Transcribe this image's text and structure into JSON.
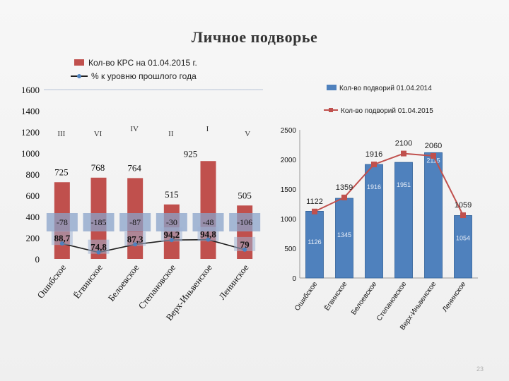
{
  "title": "Личное подворье",
  "page_number": "23",
  "chart_data": [
    {
      "type": "bar",
      "categories": [
        "Ошибское",
        "Ёгвинское",
        "Белоевское",
        "Степановское",
        "Верх-Иньвенское",
        "Ленинское"
      ],
      "series": [
        {
          "name": "Кол-во КРС на 01.04.2015 г.",
          "values": [
            725,
            768,
            764,
            515,
            925,
            505
          ],
          "color": "#c0504d"
        },
        {
          "name": "% к уровню прошлого года",
          "values": [
            88.7,
            74.8,
            87.3,
            94.2,
            94.8,
            79
          ],
          "labels": [
            "88,7",
            "74,8",
            "87,3",
            "94,2",
            "94,8",
            "79"
          ],
          "color": "#1f1f1f",
          "marker_color": "#4f81bd"
        }
      ],
      "value_labels": [
        "725",
        "768",
        "764",
        "515",
        "925",
        "505"
      ],
      "differences": [
        "-78",
        "-185",
        "-87",
        "-30",
        "-48",
        "-106"
      ],
      "ranks": [
        "III",
        "VI",
        "IV",
        "II",
        "I",
        "V"
      ],
      "yticks": [
        "0",
        "200",
        "400",
        "600",
        "800",
        "1000",
        "1200",
        "1400",
        "1600"
      ],
      "ylim": [
        0,
        1600
      ],
      "legend_position": "top",
      "grid": false
    },
    {
      "type": "bar",
      "categories": [
        "Ошибское",
        "Ёгвинское",
        "Белоевское",
        "Степановское",
        "Верх-Иньвенское",
        "Ленинское"
      ],
      "series": [
        {
          "name": "Кол-во подворий 01.04.2014",
          "values": [
            1126,
            1345,
            1916,
            1951,
            2115,
            1054
          ],
          "color": "#4f81bd"
        },
        {
          "name": "Кол-во подворий 01.04.2015",
          "values": [
            1122,
            1359,
            1916,
            2100,
            2060,
            1059
          ],
          "color": "#c0504d"
        }
      ],
      "bar_labels": [
        "1126",
        "1345",
        "1916",
        "1951",
        "2115",
        "1054"
      ],
      "line_labels": [
        "1122",
        "1359",
        "1916",
        "2100",
        "2060",
        "1059"
      ],
      "yticks": [
        "0",
        "500",
        "1000",
        "1500",
        "2000",
        "2500"
      ],
      "ylim": [
        0,
        2500
      ],
      "legend_position": "top-left",
      "grid": false
    }
  ]
}
